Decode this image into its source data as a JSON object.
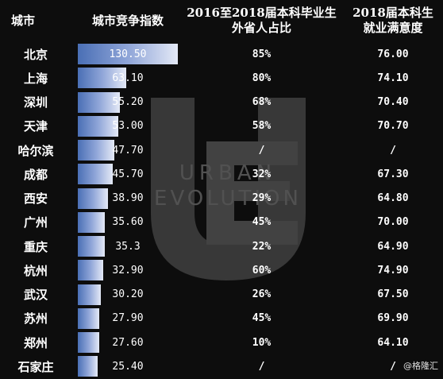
{
  "headers": {
    "city": "城市",
    "index": "城市竞争指数",
    "outside_ratio_line1": "2016至2018届本科毕业生",
    "outside_ratio_line2": "外省人占比",
    "satisfaction_line1": "2018届本科生",
    "satisfaction_line2": "就业满意度"
  },
  "watermark_text": "URBAN EVOLUTION",
  "credit": "@格隆汇",
  "chart_data": {
    "type": "table",
    "columns": [
      "城市",
      "城市竞争指数",
      "2016至2018届本科毕业生外省人占比",
      "2018届本科生就业满意度"
    ],
    "index_max": 130.5,
    "rows": [
      {
        "city": "北京",
        "index": 130.5,
        "index_label": "130.50",
        "outside_ratio": "85%",
        "satisfaction": "76.00"
      },
      {
        "city": "上海",
        "index": 63.1,
        "index_label": "63.10",
        "outside_ratio": "80%",
        "satisfaction": "74.10"
      },
      {
        "city": "深圳",
        "index": 55.2,
        "index_label": "55.20",
        "outside_ratio": "68%",
        "satisfaction": "70.40"
      },
      {
        "city": "天津",
        "index": 53.0,
        "index_label": "53.00",
        "outside_ratio": "58%",
        "satisfaction": "70.70"
      },
      {
        "city": "哈尔滨",
        "index": 47.7,
        "index_label": "47.70",
        "outside_ratio": "/",
        "satisfaction": "/"
      },
      {
        "city": "成都",
        "index": 45.7,
        "index_label": "45.70",
        "outside_ratio": "32%",
        "satisfaction": "67.30"
      },
      {
        "city": "西安",
        "index": 38.9,
        "index_label": "38.90",
        "outside_ratio": "29%",
        "satisfaction": "64.80"
      },
      {
        "city": "广州",
        "index": 35.6,
        "index_label": "35.60",
        "outside_ratio": "45%",
        "satisfaction": "70.00"
      },
      {
        "city": "重庆",
        "index": 35.3,
        "index_label": "35.3",
        "outside_ratio": "22%",
        "satisfaction": "64.90"
      },
      {
        "city": "杭州",
        "index": 32.9,
        "index_label": "32.90",
        "outside_ratio": "60%",
        "satisfaction": "74.90"
      },
      {
        "city": "武汉",
        "index": 30.2,
        "index_label": "30.20",
        "outside_ratio": "26%",
        "satisfaction": "67.50"
      },
      {
        "city": "苏州",
        "index": 27.9,
        "index_label": "27.90",
        "outside_ratio": "45%",
        "satisfaction": "69.90"
      },
      {
        "city": "郑州",
        "index": 27.6,
        "index_label": "27.60",
        "outside_ratio": "10%",
        "satisfaction": "64.10"
      },
      {
        "city": "石家庄",
        "index": 25.4,
        "index_label": "25.40",
        "outside_ratio": "/",
        "satisfaction": "/"
      }
    ]
  }
}
